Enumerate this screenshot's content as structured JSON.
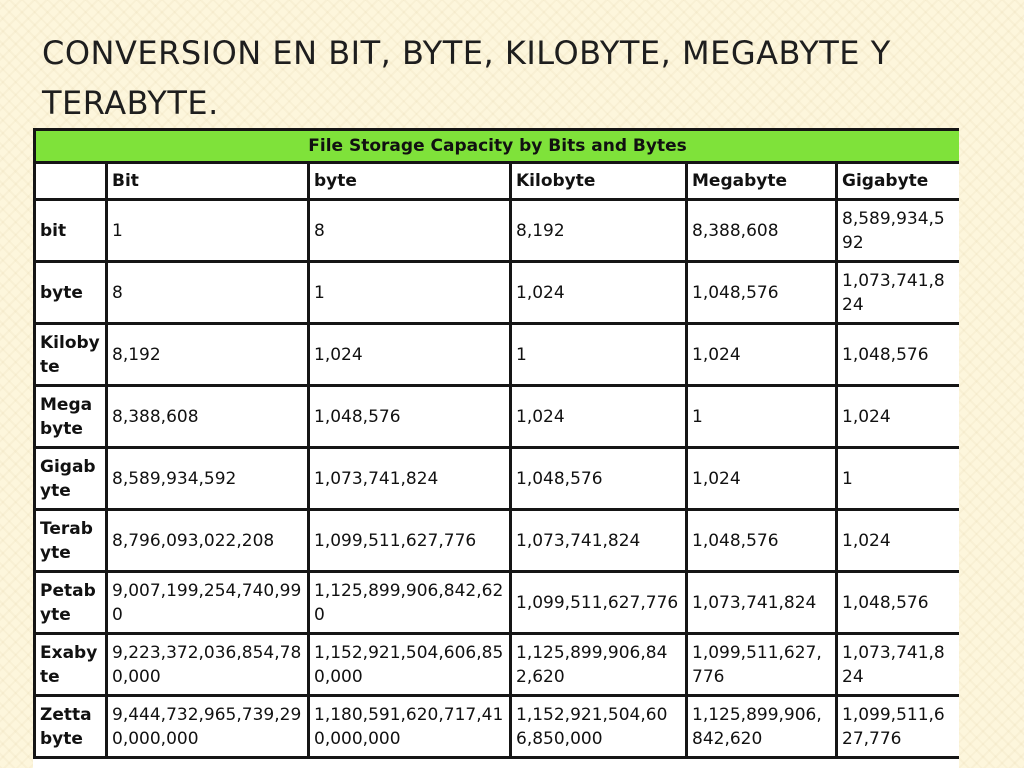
{
  "title": "CONVERSION EN BIT, BYTE, KILOBYTE, MEGABYTE Y TERABYTE.",
  "table": {
    "caption": "File Storage Capacity by Bits and Bytes",
    "columns": [
      "Bit",
      "byte",
      "Kilobyte",
      "Megabyte",
      "Gigabyte"
    ],
    "rows": [
      {
        "label": "bit",
        "values": [
          "1",
          "8",
          "8,192",
          "8,388,608",
          "8,589,934,592"
        ]
      },
      {
        "label": "byte",
        "values": [
          "8",
          "1",
          "1,024",
          "1,048,576",
          "1,073,741,824"
        ]
      },
      {
        "label": "Kilobyte",
        "values": [
          "8,192",
          "1,024",
          "1",
          "1,024",
          "1,048,576"
        ]
      },
      {
        "label": "Megabyte",
        "values": [
          "8,388,608",
          "1,048,576",
          "1,024",
          "1",
          "1,024"
        ]
      },
      {
        "label": "Gigabyte",
        "values": [
          "8,589,934,592",
          "1,073,741,824",
          "1,048,576",
          "1,024",
          "1"
        ]
      },
      {
        "label": "Terabyte",
        "values": [
          "8,796,093,022,208",
          "1,099,511,627,776",
          "1,073,741,824",
          "1,048,576",
          "1,024"
        ]
      },
      {
        "label": "Petabyte",
        "values": [
          "9,007,199,254,740,990",
          "1,125,899,906,842,620",
          "1,099,511,627,776",
          "1,073,741,824",
          "1,048,576"
        ]
      },
      {
        "label": "Exabyte",
        "values": [
          "9,223,372,036,854,780,000",
          "1,152,921,504,606,850,000",
          "1,125,899,906,842,620",
          "1,099,511,627,776",
          "1,073,741,824"
        ]
      },
      {
        "label": "Zettabyte",
        "values": [
          "9,444,732,965,739,290,000,000",
          "1,180,591,620,717,410,000,000",
          "1,152,921,504,606,850,000",
          "1,125,899,906,842,620",
          "1,099,511,627,776"
        ]
      }
    ]
  }
}
